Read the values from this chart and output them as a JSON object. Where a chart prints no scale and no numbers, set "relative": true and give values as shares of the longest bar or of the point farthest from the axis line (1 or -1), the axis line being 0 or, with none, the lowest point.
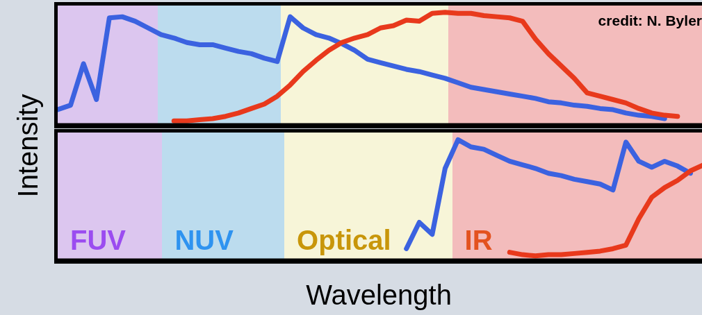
{
  "chart_data": [
    {
      "type": "line",
      "relative": true,
      "tick_labels": false,
      "annotations": [
        "credit: N. Byler"
      ],
      "categories": [
        null,
        null,
        null,
        null,
        null,
        null,
        null,
        null,
        null,
        null,
        null,
        null,
        null,
        null,
        null,
        null,
        null,
        null,
        null,
        null,
        null,
        null,
        null,
        null,
        null,
        null,
        null,
        null,
        null,
        null,
        null,
        null,
        null,
        null,
        null,
        null,
        null,
        null,
        null,
        null,
        null,
        null,
        null,
        null,
        null,
        null,
        null,
        null,
        null,
        null,
        null
      ],
      "series": [
        {
          "color": "#3b62e0",
          "values": [
            0.13,
            0.17,
            0.54,
            0.22,
            0.95,
            0.96,
            0.92,
            0.86,
            0.8,
            0.77,
            0.73,
            0.71,
            0.71,
            0.68,
            0.65,
            0.63,
            0.59,
            0.56,
            0.96,
            0.86,
            0.8,
            0.77,
            0.72,
            0.66,
            0.58,
            0.55,
            0.52,
            0.49,
            0.47,
            0.44,
            0.41,
            0.37,
            0.33,
            0.31,
            0.29,
            0.27,
            0.25,
            0.23,
            0.2,
            0.19,
            0.17,
            0.16,
            0.14,
            0.13,
            0.1,
            0.08,
            0.07,
            0.05,
            null,
            null,
            null
          ]
        },
        {
          "color": "#e8391c",
          "values": [
            null,
            null,
            null,
            null,
            null,
            null,
            null,
            null,
            null,
            0.03,
            0.03,
            0.04,
            0.05,
            0.07,
            0.1,
            0.14,
            0.18,
            0.25,
            0.35,
            0.47,
            0.57,
            0.66,
            0.73,
            0.77,
            0.8,
            0.86,
            0.88,
            0.93,
            0.92,
            0.99,
            1,
            0.99,
            0.99,
            0.97,
            0.96,
            0.95,
            0.92,
            0.76,
            0.63,
            0.52,
            0.41,
            0.28,
            0.25,
            0.22,
            0.19,
            0.14,
            0.1,
            0.08,
            0.07,
            null,
            null
          ]
        }
      ]
    },
    {
      "type": "line",
      "relative": true,
      "tick_labels": false,
      "xlabel": "Wavelength",
      "ylabel": "Intensity",
      "annotations": [
        "FUV",
        "NUV",
        "Optical",
        "IR"
      ],
      "categories": [
        null,
        null,
        null,
        null,
        null,
        null,
        null,
        null,
        null,
        null,
        null,
        null,
        null,
        null,
        null,
        null,
        null,
        null,
        null,
        null,
        null,
        null,
        null,
        null,
        null,
        null,
        null,
        null,
        null,
        null,
        null,
        null,
        null,
        null,
        null,
        null,
        null,
        null,
        null,
        null,
        null,
        null,
        null,
        null,
        null,
        null,
        null,
        null,
        null,
        null,
        null
      ],
      "series": [
        {
          "color": "#3b62e0",
          "values": [
            null,
            null,
            null,
            null,
            null,
            null,
            null,
            null,
            null,
            null,
            null,
            null,
            null,
            null,
            null,
            null,
            null,
            null,
            null,
            null,
            null,
            null,
            null,
            null,
            null,
            null,
            null,
            0.09,
            0.31,
            0.21,
            0.76,
            1,
            0.94,
            0.92,
            0.87,
            0.82,
            0.79,
            0.76,
            0.72,
            0.7,
            0.67,
            0.65,
            0.63,
            0.58,
            0.98,
            0.82,
            0.77,
            0.82,
            0.78,
            0.72,
            null
          ]
        },
        {
          "color": "#e8391c",
          "values": [
            null,
            null,
            null,
            null,
            null,
            null,
            null,
            null,
            null,
            null,
            null,
            null,
            null,
            null,
            null,
            null,
            null,
            null,
            null,
            null,
            null,
            null,
            null,
            null,
            null,
            null,
            null,
            null,
            null,
            null,
            null,
            null,
            null,
            null,
            null,
            0.06,
            0.04,
            0.03,
            0.04,
            0.04,
            0.05,
            0.06,
            0.07,
            0.09,
            0.12,
            0.34,
            0.52,
            0.6,
            0.66,
            0.74,
            0.79
          ]
        }
      ]
    }
  ]
}
